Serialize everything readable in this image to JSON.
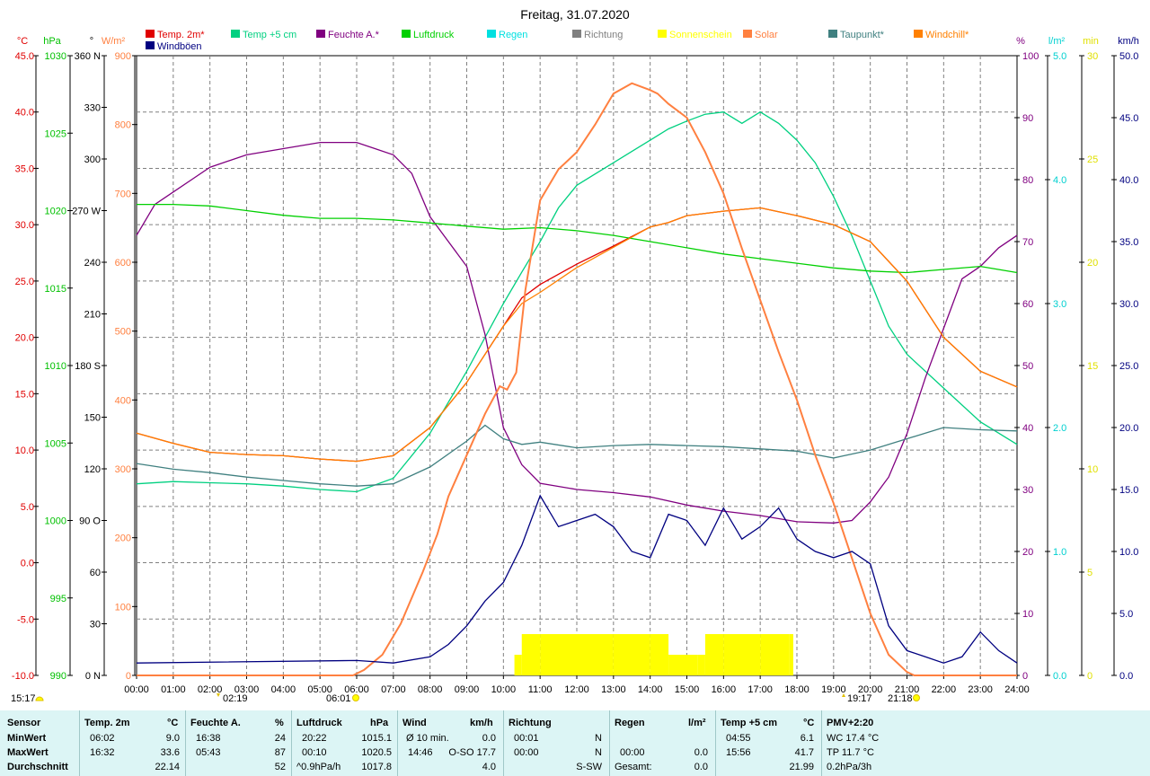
{
  "header": {
    "title": "Freitag, 31.07.2020"
  },
  "legend": {
    "row1": [
      {
        "label": "Temp. 2m*",
        "color": "#e00000"
      },
      {
        "label": "Temp +5 cm",
        "color": "#00d080"
      },
      {
        "label": "Feuchte A.*",
        "color": "#800080"
      },
      {
        "label": "Luftdruck",
        "color": "#00d000"
      },
      {
        "label": "Regen",
        "color": "#00e0e0"
      },
      {
        "label": "Richtung",
        "color": "#808080"
      },
      {
        "label": "Sonnenschein",
        "color": "#ffff00"
      },
      {
        "label": "Solar",
        "color": "#ff8040"
      },
      {
        "label": "Taupunkt*",
        "color": "#408080"
      },
      {
        "label": "Windchill*",
        "color": "#ff8000"
      }
    ],
    "row2": [
      {
        "label": "Windböen",
        "color": "#000080"
      }
    ]
  },
  "axes": {
    "temp": {
      "unit": "°C",
      "color": "#e00000",
      "ticks": [
        "45.0",
        "40.0",
        "35.0",
        "30.0",
        "25.0",
        "20.0",
        "15.0",
        "10.0",
        "5.0",
        "0.0",
        "-5.0",
        "-10.0"
      ]
    },
    "pressure": {
      "unit": "hPa",
      "color": "#00c000",
      "ticks": [
        "1030",
        "1025",
        "1020",
        "1015",
        "1010",
        "1005",
        "1000",
        "995",
        "990"
      ]
    },
    "direction": {
      "unit": "°",
      "color": "#000000",
      "ticks": [
        "360 N",
        "330",
        "300",
        "270 W",
        "240",
        "210",
        "180 S",
        "150",
        "120",
        "90 O",
        "60",
        "30",
        "0 N"
      ]
    },
    "solar": {
      "unit": "W/m²",
      "color": "#ff8040",
      "ticks": [
        "900",
        "800",
        "700",
        "600",
        "500",
        "400",
        "300",
        "200",
        "100",
        "0"
      ]
    },
    "humidity": {
      "unit": "%",
      "color": "#800080",
      "ticks": [
        "100",
        "90",
        "80",
        "70",
        "60",
        "50",
        "40",
        "30",
        "20",
        "10",
        "0"
      ]
    },
    "rain": {
      "unit": "l/m²",
      "color": "#00d0d0",
      "ticks": [
        "5.0",
        "4.0",
        "3.0",
        "2.0",
        "1.0",
        "0.0"
      ]
    },
    "sunmin": {
      "unit": "min",
      "color": "#e0e000",
      "ticks": [
        "30",
        "25",
        "20",
        "15",
        "10",
        "5",
        "0"
      ]
    },
    "wind": {
      "unit": "km/h",
      "color": "#000080",
      "ticks": [
        "50.0",
        "45.0",
        "40.0",
        "35.0",
        "30.0",
        "25.0",
        "20.0",
        "15.0",
        "10.0",
        "5.0",
        "0.0"
      ]
    },
    "time_ticks": [
      "00:00",
      "01:00",
      "02:00",
      "03:00",
      "04:00",
      "05:00",
      "06:00",
      "07:00",
      "08:00",
      "09:00",
      "10:00",
      "11:00",
      "12:00",
      "13:00",
      "14:00",
      "15:00",
      "16:00",
      "17:00",
      "18:00",
      "19:00",
      "20:00",
      "21:00",
      "22:00",
      "23:00",
      "24:00"
    ]
  },
  "events": {
    "left_time": "15:17",
    "moonset": "02:19",
    "sunrise": "06:01",
    "moonrise": "19:17",
    "sunset": "21:18"
  },
  "chart_data": {
    "type": "line",
    "title": "Freitag, 31.07.2020",
    "x_unit": "hours",
    "xlim": [
      0,
      24
    ],
    "series": [
      {
        "name": "Temp. 2m*",
        "axis": "temp",
        "x": [
          0,
          1,
          2,
          3,
          4,
          5,
          6,
          7,
          8,
          9,
          10,
          10.5,
          11,
          12,
          13,
          14,
          14.5,
          15,
          16,
          17,
          18,
          19,
          20,
          21,
          22,
          23,
          24
        ],
        "values": [
          11.5,
          10.6,
          9.8,
          9.6,
          9.5,
          9.2,
          9.0,
          9.5,
          12.0,
          16.0,
          21.0,
          23.5,
          24.7,
          26.5,
          28.1,
          29.8,
          30.2,
          30.8,
          31.2,
          31.5,
          30.8,
          30.0,
          28.5,
          25.0,
          20.0,
          17.0,
          15.6
        ]
      },
      {
        "name": "Temp +5 cm",
        "axis": "temp",
        "x": [
          0,
          1,
          2,
          3,
          4,
          5,
          6,
          7,
          8,
          9,
          10,
          10.5,
          11,
          11.5,
          12,
          12.5,
          13,
          13.5,
          14,
          14.5,
          15,
          15.5,
          16,
          16.5,
          17,
          17.5,
          18,
          18.5,
          19,
          19.5,
          20,
          20.5,
          21,
          22,
          23,
          24
        ],
        "values": [
          7.0,
          7.2,
          7.1,
          7.0,
          6.8,
          6.5,
          6.3,
          7.5,
          11.5,
          17.0,
          23.0,
          25.8,
          28.5,
          31.5,
          33.5,
          34.5,
          35.5,
          36.5,
          37.5,
          38.5,
          39.2,
          39.8,
          40.0,
          39.0,
          40.0,
          39.0,
          37.5,
          35.5,
          32.5,
          29.0,
          25.0,
          21.0,
          18.5,
          15.5,
          12.5,
          10.5
        ]
      },
      {
        "name": "Feuchte A.*",
        "axis": "humidity",
        "x": [
          0,
          0.5,
          1,
          1.5,
          2,
          3,
          4,
          5,
          6,
          6.5,
          7,
          7.5,
          8,
          8.5,
          9,
          9.5,
          10,
          10.5,
          11,
          12,
          13,
          14,
          15,
          16,
          17,
          18,
          19,
          19.5,
          20,
          20.5,
          21,
          21.5,
          22,
          22.5,
          23,
          23.5,
          24
        ],
        "values": [
          71,
          76,
          78,
          80,
          82,
          84,
          85,
          86,
          86,
          85,
          84,
          81,
          74,
          70,
          66,
          55,
          40,
          34,
          31,
          30,
          29.5,
          28.8,
          27.5,
          26.5,
          25.8,
          24.8,
          24.6,
          25.0,
          28,
          32,
          39,
          48,
          56,
          64,
          66,
          69,
          71
        ]
      },
      {
        "name": "Luftdruck",
        "axis": "pressure",
        "x": [
          0,
          1,
          2,
          3,
          4,
          5,
          6,
          7,
          8,
          9,
          10,
          11,
          12,
          13,
          14,
          15,
          16,
          17,
          18,
          19,
          20,
          21,
          22,
          23,
          24
        ],
        "values": [
          1020.4,
          1020.4,
          1020.3,
          1020.0,
          1019.7,
          1019.5,
          1019.5,
          1019.4,
          1019.2,
          1019.0,
          1018.8,
          1018.9,
          1018.7,
          1018.4,
          1018.0,
          1017.6,
          1017.2,
          1016.9,
          1016.6,
          1016.3,
          1016.1,
          1016.0,
          1016.2,
          1016.4,
          1016.0
        ]
      },
      {
        "name": "Taupunkt*",
        "axis": "temp",
        "x": [
          0,
          1,
          2,
          3,
          4,
          5,
          6,
          7,
          8,
          9,
          9.5,
          10,
          10.5,
          11,
          12,
          13,
          14,
          15,
          16,
          17,
          18,
          19,
          20,
          21,
          22,
          23,
          24
        ],
        "values": [
          8.8,
          8.3,
          8.0,
          7.6,
          7.3,
          7.0,
          6.8,
          7.0,
          8.5,
          10.8,
          12.2,
          11.0,
          10.5,
          10.7,
          10.2,
          10.4,
          10.5,
          10.4,
          10.3,
          10.1,
          9.9,
          9.3,
          10.0,
          11.0,
          12.0,
          11.8,
          11.7
        ]
      },
      {
        "name": "Windchill*",
        "axis": "temp",
        "x": [
          0,
          1,
          2,
          3,
          4,
          5,
          6,
          7,
          8,
          9,
          10,
          10.5,
          11,
          12,
          13,
          14,
          14.5,
          15,
          16,
          17,
          18,
          19,
          20,
          21,
          22,
          23,
          24
        ],
        "values": [
          11.5,
          10.6,
          9.8,
          9.6,
          9.5,
          9.2,
          9.0,
          9.5,
          12.0,
          16.0,
          21.0,
          23.0,
          24.0,
          26.2,
          28.0,
          29.8,
          30.2,
          30.8,
          31.2,
          31.5,
          30.8,
          30.0,
          28.5,
          25.0,
          20.0,
          17.0,
          15.6
        ]
      },
      {
        "name": "Solar",
        "axis": "solar",
        "x": [
          0,
          5.9,
          6.2,
          6.7,
          7.2,
          7.8,
          8.2,
          8.5,
          9.0,
          9.5,
          9.9,
          10.1,
          10.35,
          10.6,
          11.0,
          11.5,
          12.0,
          12.5,
          13.0,
          13.5,
          14.0,
          14.2,
          14.5,
          15.0,
          15.5,
          16.0,
          16.5,
          17.0,
          17.5,
          18.0,
          18.5,
          19.0,
          19.5,
          20.0,
          20.5,
          21.0,
          21.2,
          24.0
        ],
        "values": [
          0,
          0,
          8,
          30,
          75,
          150,
          205,
          260,
          320,
          380,
          420,
          415,
          440,
          560,
          690,
          735,
          760,
          800,
          845,
          860,
          850,
          845,
          830,
          810,
          760,
          700,
          620,
          545,
          470,
          400,
          320,
          250,
          170,
          90,
          30,
          5,
          0,
          0
        ]
      },
      {
        "name": "Windböen",
        "axis": "wind",
        "x": [
          0,
          6,
          7,
          8,
          8.5,
          9,
          9.5,
          10,
          10.5,
          11,
          11.5,
          12,
          12.5,
          13,
          13.5,
          14,
          14.5,
          15,
          15.5,
          16,
          16.5,
          17,
          17.5,
          18,
          18.5,
          19,
          19.5,
          20,
          20.5,
          21,
          21.5,
          22,
          22.5,
          23,
          23.5,
          24
        ],
        "values": [
          1.0,
          1.2,
          1.0,
          1.5,
          2.5,
          4.0,
          6.0,
          7.5,
          10.5,
          14.5,
          12.0,
          12.5,
          13.0,
          12.0,
          10.0,
          9.5,
          13.0,
          12.5,
          10.5,
          13.5,
          11.0,
          12.0,
          13.5,
          11.0,
          10.0,
          9.5,
          10.0,
          9.0,
          4.0,
          2.0,
          1.5,
          1.0,
          1.5,
          3.5,
          2.0,
          1.0
        ]
      },
      {
        "name": "Sonnenschein",
        "axis": "sunmin",
        "x": [
          0,
          10.3,
          10.5,
          11,
          12,
          13,
          14,
          14.5,
          15,
          15.3,
          15.5,
          16,
          17,
          17.8,
          17.9,
          24
        ],
        "values": [
          0,
          1,
          2,
          2,
          2,
          2,
          2,
          1,
          1,
          1,
          2,
          2,
          2,
          2,
          0,
          0
        ]
      }
    ],
    "summary_table": {
      "headers": [
        "Sensor",
        "Temp. 2m",
        "°C",
        "Feuchte A.",
        "%",
        "Luftdruck",
        "hPa",
        "Wind",
        "km/h",
        "Richtung",
        "Regen",
        "l/m²",
        "Temp +5 cm",
        "°C",
        "PMV+2:20"
      ],
      "rows": [
        {
          "label": "MinWert",
          "temp_time": "06:02",
          "temp": "9.0",
          "hum_time": "16:38",
          "hum": "24",
          "press_time": "20:22",
          "press": "1015.1",
          "wind_label": "Ø 10 min.",
          "wind": "0.0",
          "dir_time": "00:01",
          "dir": "N",
          "rain_time": "",
          "rain": "",
          "t5_time": "04:55",
          "t5": "6.1",
          "pmv": "WC 17.4 °C"
        },
        {
          "label": "MaxWert",
          "temp_time": "16:32",
          "temp": "33.6",
          "hum_time": "05:43",
          "hum": "87",
          "press_time": "00:10",
          "press": "1020.5",
          "wind_label": "14:46",
          "wind": "O-SO 17.7",
          "dir_time": "00:00",
          "dir": "N",
          "rain_time": "00:00",
          "rain": "0.0",
          "t5_time": "15:56",
          "t5": "41.7",
          "pmv": "TP 11.7 °C"
        },
        {
          "label": "Durchschnitt",
          "temp_time": "",
          "temp": "22.14",
          "hum_time": "",
          "hum": "52",
          "press_time": "^0.9hPa/h",
          "press": "1017.8",
          "wind_label": "",
          "wind": "4.0",
          "dir_time": "",
          "dir": "S-SW",
          "rain_time": "Gesamt:",
          "rain": "0.0",
          "t5_time": "",
          "t5": "21.99",
          "pmv": "0.2hPa/3h"
        }
      ]
    }
  }
}
